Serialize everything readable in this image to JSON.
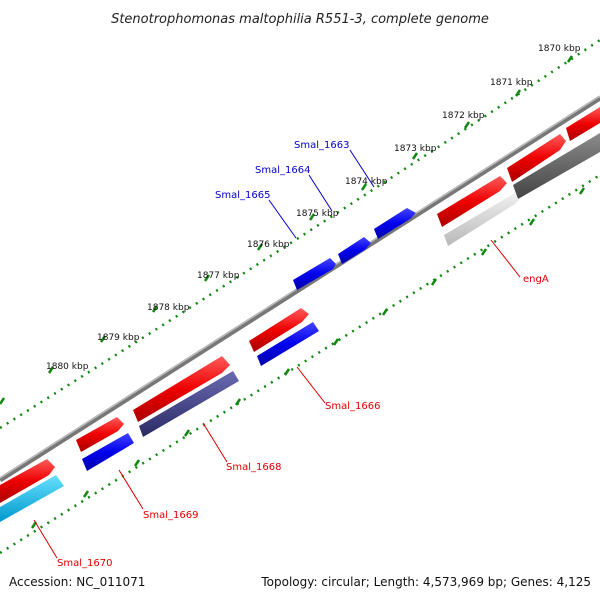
{
  "title": "Stenotrophomonas maltophilia R551-3, complete genome",
  "footer": {
    "accession": "Accession: NC_011071",
    "summary": "Topology: circular; Length: 4,573,969 bp; Genes: 4,125"
  },
  "colors": {
    "forward_cds": "#e00000",
    "reverse_cds": "#0000dd",
    "label_red": "#dd0000",
    "label_blue": "#0000cc",
    "backbone": "#888888",
    "ticks": "#118811"
  },
  "kbp_ticks": [
    "1870 kbp",
    "1871 kbp",
    "1872 kbp",
    "1873 kbp",
    "1874 kbp",
    "1875 kbp",
    "1876 kbp",
    "1877 kbp",
    "1878 kbp",
    "1879 kbp",
    "1880 kbp"
  ],
  "genes_upper": [
    "Smal_1663",
    "Smal_1664",
    "Smal_1665"
  ],
  "genes_lower": [
    "engA",
    "Smal_1666",
    "Smal_1668",
    "Smal_1669",
    "Smal_1670"
  ]
}
